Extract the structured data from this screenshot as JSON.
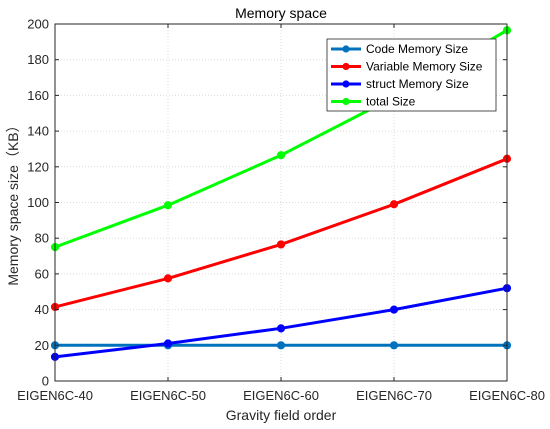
{
  "chart_data": {
    "type": "line",
    "title": "Memory space",
    "xlabel": "Gravity field order",
    "ylabel": "Memory space size（KB）",
    "categories": [
      "EIGEN6C-40",
      "EIGEN6C-50",
      "EIGEN6C-60",
      "EIGEN6C-70",
      "EIGEN6C-80"
    ],
    "ylim": [
      0,
      200
    ],
    "yticks": [
      0,
      20,
      40,
      60,
      80,
      100,
      120,
      140,
      160,
      180,
      200
    ],
    "grid": true,
    "legend_position": "top-right",
    "series": [
      {
        "name": "Code Memory Size",
        "color": "#0072bd",
        "values": [
          20,
          20,
          20,
          20,
          20
        ]
      },
      {
        "name": "Variable Memory Size",
        "color": "#ff0000",
        "values": [
          41.5,
          57.5,
          76.5,
          99,
          124.5
        ]
      },
      {
        "name": "struct Memory Size",
        "color": "#0000ff",
        "values": [
          13.5,
          21,
          29.5,
          40,
          52
        ]
      },
      {
        "name": "total Size",
        "color": "#00ff00",
        "values": [
          75,
          98.5,
          126.5,
          159,
          196.5
        ]
      }
    ]
  }
}
